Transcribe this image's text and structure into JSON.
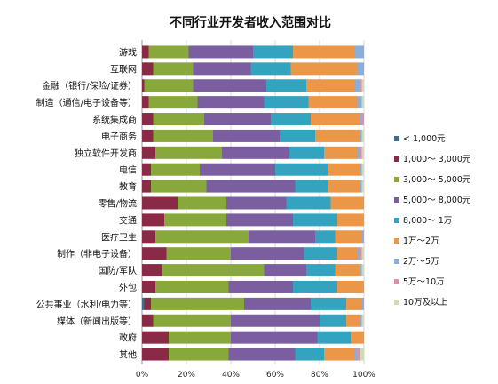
{
  "chart_data": {
    "type": "bar",
    "orientation": "horizontal",
    "stacked": "percent",
    "title": "不同行业开发者收入范围对比",
    "xlabel": "",
    "ylabel": "",
    "xlim": [
      0,
      100
    ],
    "x_ticks": [
      "0%",
      "20%",
      "40%",
      "60%",
      "80%",
      "100%"
    ],
    "grid": true,
    "legend_position": "right",
    "categories": [
      "游戏",
      "互联网",
      "金融（银行/保险/证券）",
      "制造（通信/电子设备等）",
      "系统集成商",
      "电子商务",
      "独立软件开发商",
      "电信",
      "教育",
      "零售/物流",
      "交通",
      "医疗卫生",
      "制作（非电子设备）",
      "国防/军队",
      "外包",
      "公共事业（水利/电力等）",
      "媒体（新闻出版等）",
      "政府",
      "其他"
    ],
    "series": [
      {
        "name": "< 1,000元",
        "color": "#3c6e8f",
        "values": [
          0,
          0,
          0,
          0,
          0,
          0,
          0,
          0,
          0,
          0,
          0,
          0,
          0,
          0,
          0,
          1,
          0,
          0,
          0
        ]
      },
      {
        "name": "1,000～ 3,000元",
        "color": "#8b2a46",
        "values": [
          3,
          5,
          1,
          3,
          5,
          5,
          6,
          4,
          4,
          16,
          10,
          6,
          11,
          9,
          6,
          3,
          5,
          12,
          12
        ]
      },
      {
        "name": "3,000～ 5,000元",
        "color": "#89a83b",
        "values": [
          18,
          18,
          22,
          22,
          23,
          27,
          30,
          22,
          25,
          22,
          28,
          42,
          29,
          46,
          33,
          42,
          35,
          28,
          27
        ]
      },
      {
        "name": "5,000～ 8,000元",
        "color": "#7b5ea0",
        "values": [
          29,
          26,
          33,
          30,
          30,
          30,
          30,
          34,
          40,
          27,
          30,
          30,
          33,
          19,
          29,
          30,
          40,
          39,
          30
        ]
      },
      {
        "name": "8,000～ 1万",
        "color": "#33a3c0",
        "values": [
          18,
          18,
          18,
          20,
          18,
          16,
          16,
          24,
          15,
          20,
          20,
          9,
          15,
          13,
          20,
          16,
          12,
          15,
          13
        ]
      },
      {
        "name": "1万～2万",
        "color": "#ec9648",
        "values": [
          28,
          30,
          22,
          22,
          22,
          20,
          15,
          14,
          14,
          15,
          12,
          12,
          9,
          11,
          12,
          7,
          6,
          6,
          14
        ]
      },
      {
        "name": "2万～5万",
        "color": "#8aaedb",
        "values": [
          4,
          3,
          2,
          2,
          1,
          1,
          1,
          1,
          1,
          0,
          0,
          1,
          1,
          1,
          0,
          1,
          1,
          0,
          1
        ]
      },
      {
        "name": "5万～10万",
        "color": "#dd8fa8",
        "values": [
          0,
          0,
          1,
          0,
          1,
          0,
          1,
          0,
          0,
          0,
          0,
          0,
          1,
          0,
          0,
          0,
          0,
          0,
          1
        ]
      },
      {
        "name": "10万及以上",
        "color": "#cfdcb2",
        "values": [
          0,
          0,
          1,
          1,
          0,
          1,
          1,
          1,
          1,
          0,
          0,
          0,
          1,
          1,
          0,
          0,
          1,
          0,
          2
        ]
      }
    ]
  }
}
